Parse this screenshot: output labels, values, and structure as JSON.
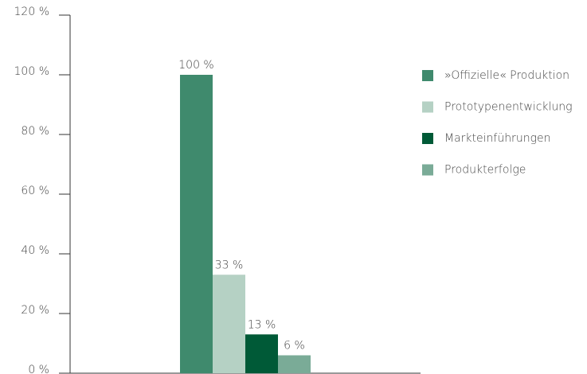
{
  "chart_data": {
    "type": "bar",
    "categories": [
      null
    ],
    "series": [
      {
        "name": "»Offizielle« Produktion",
        "color": "#3f8a6d",
        "values": [
          100
        ],
        "value_labels": [
          "100 %"
        ]
      },
      {
        "name": "Prototypenentwicklung",
        "color": "#b5d1c4",
        "values": [
          33
        ],
        "value_labels": [
          "33 %"
        ]
      },
      {
        "name": "Markteinführungen",
        "color": "#005a37",
        "values": [
          13
        ],
        "value_labels": [
          "13 %"
        ]
      },
      {
        "name": "Produkterfolge",
        "color": "#7aab97",
        "values": [
          6
        ],
        "value_labels": [
          "6 %"
        ]
      }
    ],
    "ylim": [
      0,
      120
    ],
    "yticks": [
      {
        "value": 0,
        "label": "0 %"
      },
      {
        "value": 20,
        "label": "20 %"
      },
      {
        "value": 40,
        "label": "40 %"
      },
      {
        "value": 60,
        "label": "60 %"
      },
      {
        "value": 80,
        "label": "80 %"
      },
      {
        "value": 100,
        "label": "100 %"
      },
      {
        "value": 120,
        "label": "120 %"
      }
    ],
    "legend": "right"
  }
}
